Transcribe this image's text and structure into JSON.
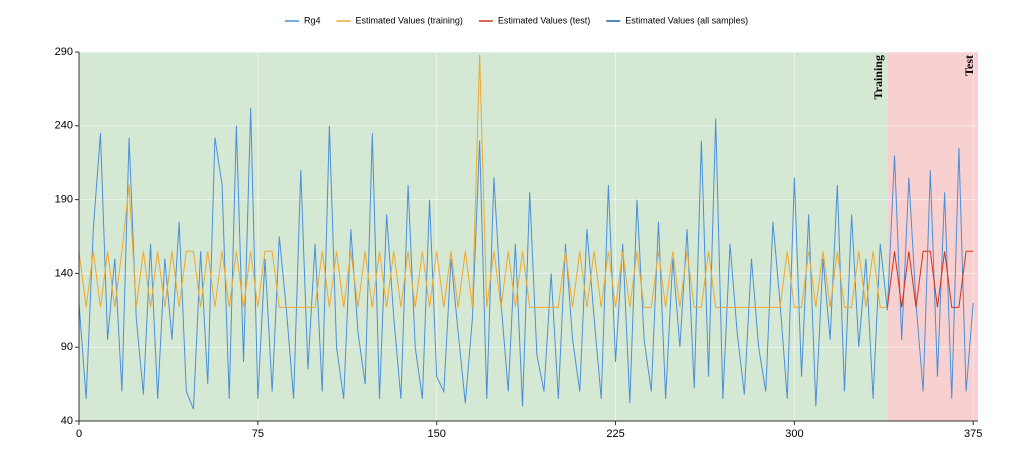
{
  "chart_data": {
    "type": "line",
    "x": [
      0,
      3,
      6,
      9,
      12,
      15,
      18,
      21,
      24,
      27,
      30,
      33,
      36,
      39,
      42,
      45,
      48,
      51,
      54,
      57,
      60,
      63,
      66,
      69,
      72,
      75,
      78,
      81,
      84,
      87,
      90,
      93,
      96,
      99,
      102,
      105,
      108,
      111,
      114,
      117,
      120,
      123,
      126,
      129,
      132,
      135,
      138,
      141,
      144,
      147,
      150,
      153,
      156,
      159,
      162,
      165,
      168,
      171,
      174,
      177,
      180,
      183,
      186,
      189,
      192,
      195,
      198,
      201,
      204,
      207,
      210,
      213,
      216,
      219,
      222,
      225,
      228,
      231,
      234,
      237,
      240,
      243,
      246,
      249,
      252,
      255,
      258,
      261,
      264,
      267,
      270,
      273,
      276,
      279,
      282,
      285,
      288,
      291,
      294,
      297,
      300,
      303,
      306,
      309,
      312,
      315,
      318,
      321,
      324,
      327,
      330,
      333,
      336,
      339,
      342,
      345,
      348,
      351,
      354,
      357,
      360,
      363,
      366,
      369,
      372,
      375
    ],
    "series": [
      {
        "name": "Rg4",
        "color": "#4a90d9",
        "values": [
          120,
          55,
          170,
          235,
          95,
          150,
          60,
          232,
          110,
          58,
          160,
          55,
          150,
          95,
          175,
          60,
          48,
          155,
          65,
          232,
          200,
          55,
          240,
          80,
          252,
          55,
          150,
          60,
          165,
          115,
          55,
          210,
          75,
          160,
          60,
          240,
          90,
          55,
          170,
          100,
          65,
          235,
          55,
          180,
          110,
          55,
          200,
          90,
          55,
          190,
          70,
          60,
          150,
          100,
          52,
          110,
          230,
          55,
          205,
          120,
          60,
          160,
          50,
          195,
          85,
          60,
          140,
          55,
          160,
          95,
          60,
          170,
          110,
          55,
          200,
          80,
          160,
          52,
          190,
          95,
          60,
          175,
          55,
          150,
          90,
          170,
          62,
          230,
          70,
          245,
          55,
          160,
          100,
          58,
          150,
          90,
          60,
          175,
          120,
          55,
          205,
          70,
          180,
          50,
          150,
          95,
          200,
          60,
          180,
          90,
          150,
          55,
          160,
          115,
          220,
          95,
          205,
          120,
          60,
          210,
          70,
          195,
          55,
          225,
          60,
          120
        ]
      },
      {
        "name": "Estimated Values (training)",
        "color": "#f0a830",
        "values": [
          155,
          117,
          155,
          117,
          155,
          117,
          155,
          200,
          117,
          155,
          117,
          155,
          117,
          155,
          117,
          155,
          155,
          117,
          155,
          117,
          155,
          117,
          155,
          117,
          155,
          117,
          155,
          155,
          117,
          117,
          117,
          117,
          117,
          117,
          155,
          117,
          155,
          117,
          155,
          117,
          155,
          117,
          155,
          117,
          155,
          117,
          155,
          117,
          155,
          117,
          155,
          117,
          155,
          117,
          155,
          117,
          288,
          117,
          155,
          117,
          155,
          117,
          155,
          117,
          117,
          117,
          117,
          117,
          155,
          117,
          155,
          117,
          155,
          117,
          155,
          117,
          155,
          117,
          155,
          117,
          117,
          155,
          117,
          155,
          117,
          155,
          117,
          117,
          155,
          117,
          117,
          117,
          117,
          117,
          117,
          117,
          117,
          117,
          117,
          155,
          117,
          117,
          155,
          117,
          155,
          117,
          155,
          117,
          117,
          155,
          117,
          155,
          117,
          117,
          null,
          null,
          null,
          null,
          null,
          null,
          null,
          null,
          null,
          null,
          null,
          null
        ]
      },
      {
        "name": "Estimated Values (test)",
        "color": "#d0341c",
        "x": [
          339,
          342,
          345,
          348,
          351,
          354,
          357,
          360,
          363,
          366,
          369,
          372,
          375
        ],
        "values": [
          117,
          155,
          117,
          155,
          117,
          155,
          155,
          117,
          155,
          117,
          117,
          155,
          155
        ]
      }
    ],
    "hidden_series": [
      {
        "name": "Estimated Values (all samples)",
        "color": "#1f5fa8"
      }
    ],
    "regions": [
      {
        "label": "Training",
        "xlim": [
          0,
          339
        ],
        "color": "#d5e8d4"
      },
      {
        "label": "Test",
        "xlim": [
          339,
          377
        ],
        "color": "#f8d0d0"
      }
    ],
    "xlim": [
      0,
      377
    ],
    "xticks": [
      0,
      75,
      150,
      225,
      300,
      375
    ],
    "ylim": [
      40,
      290
    ],
    "yticks": [
      40,
      90,
      140,
      190,
      240,
      290
    ],
    "grid": true
  }
}
